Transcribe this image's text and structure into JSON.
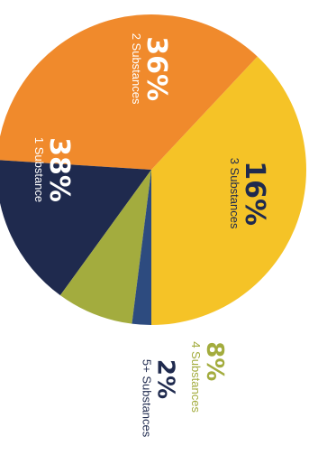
{
  "chart_data": {
    "type": "pie",
    "title": "",
    "categories": [
      "1 Substance",
      "2 Substances",
      "3 Substances",
      "4 Substances",
      "5+ Substances"
    ],
    "values": [
      38,
      36,
      16,
      8,
      2
    ],
    "value_labels": [
      "38%",
      "36%",
      "16%",
      "8%",
      "2%"
    ],
    "colors": [
      "#F5C327",
      "#F08A2C",
      "#1F2A4E",
      "#A3AC3E",
      "#2D4B7F"
    ],
    "label_colors": [
      "#ffffff",
      "#ffffff",
      "#1F2A4E",
      "#A3AC3E",
      "#1F2A4E"
    ],
    "legend": "none",
    "orientation": "rotated-90"
  }
}
